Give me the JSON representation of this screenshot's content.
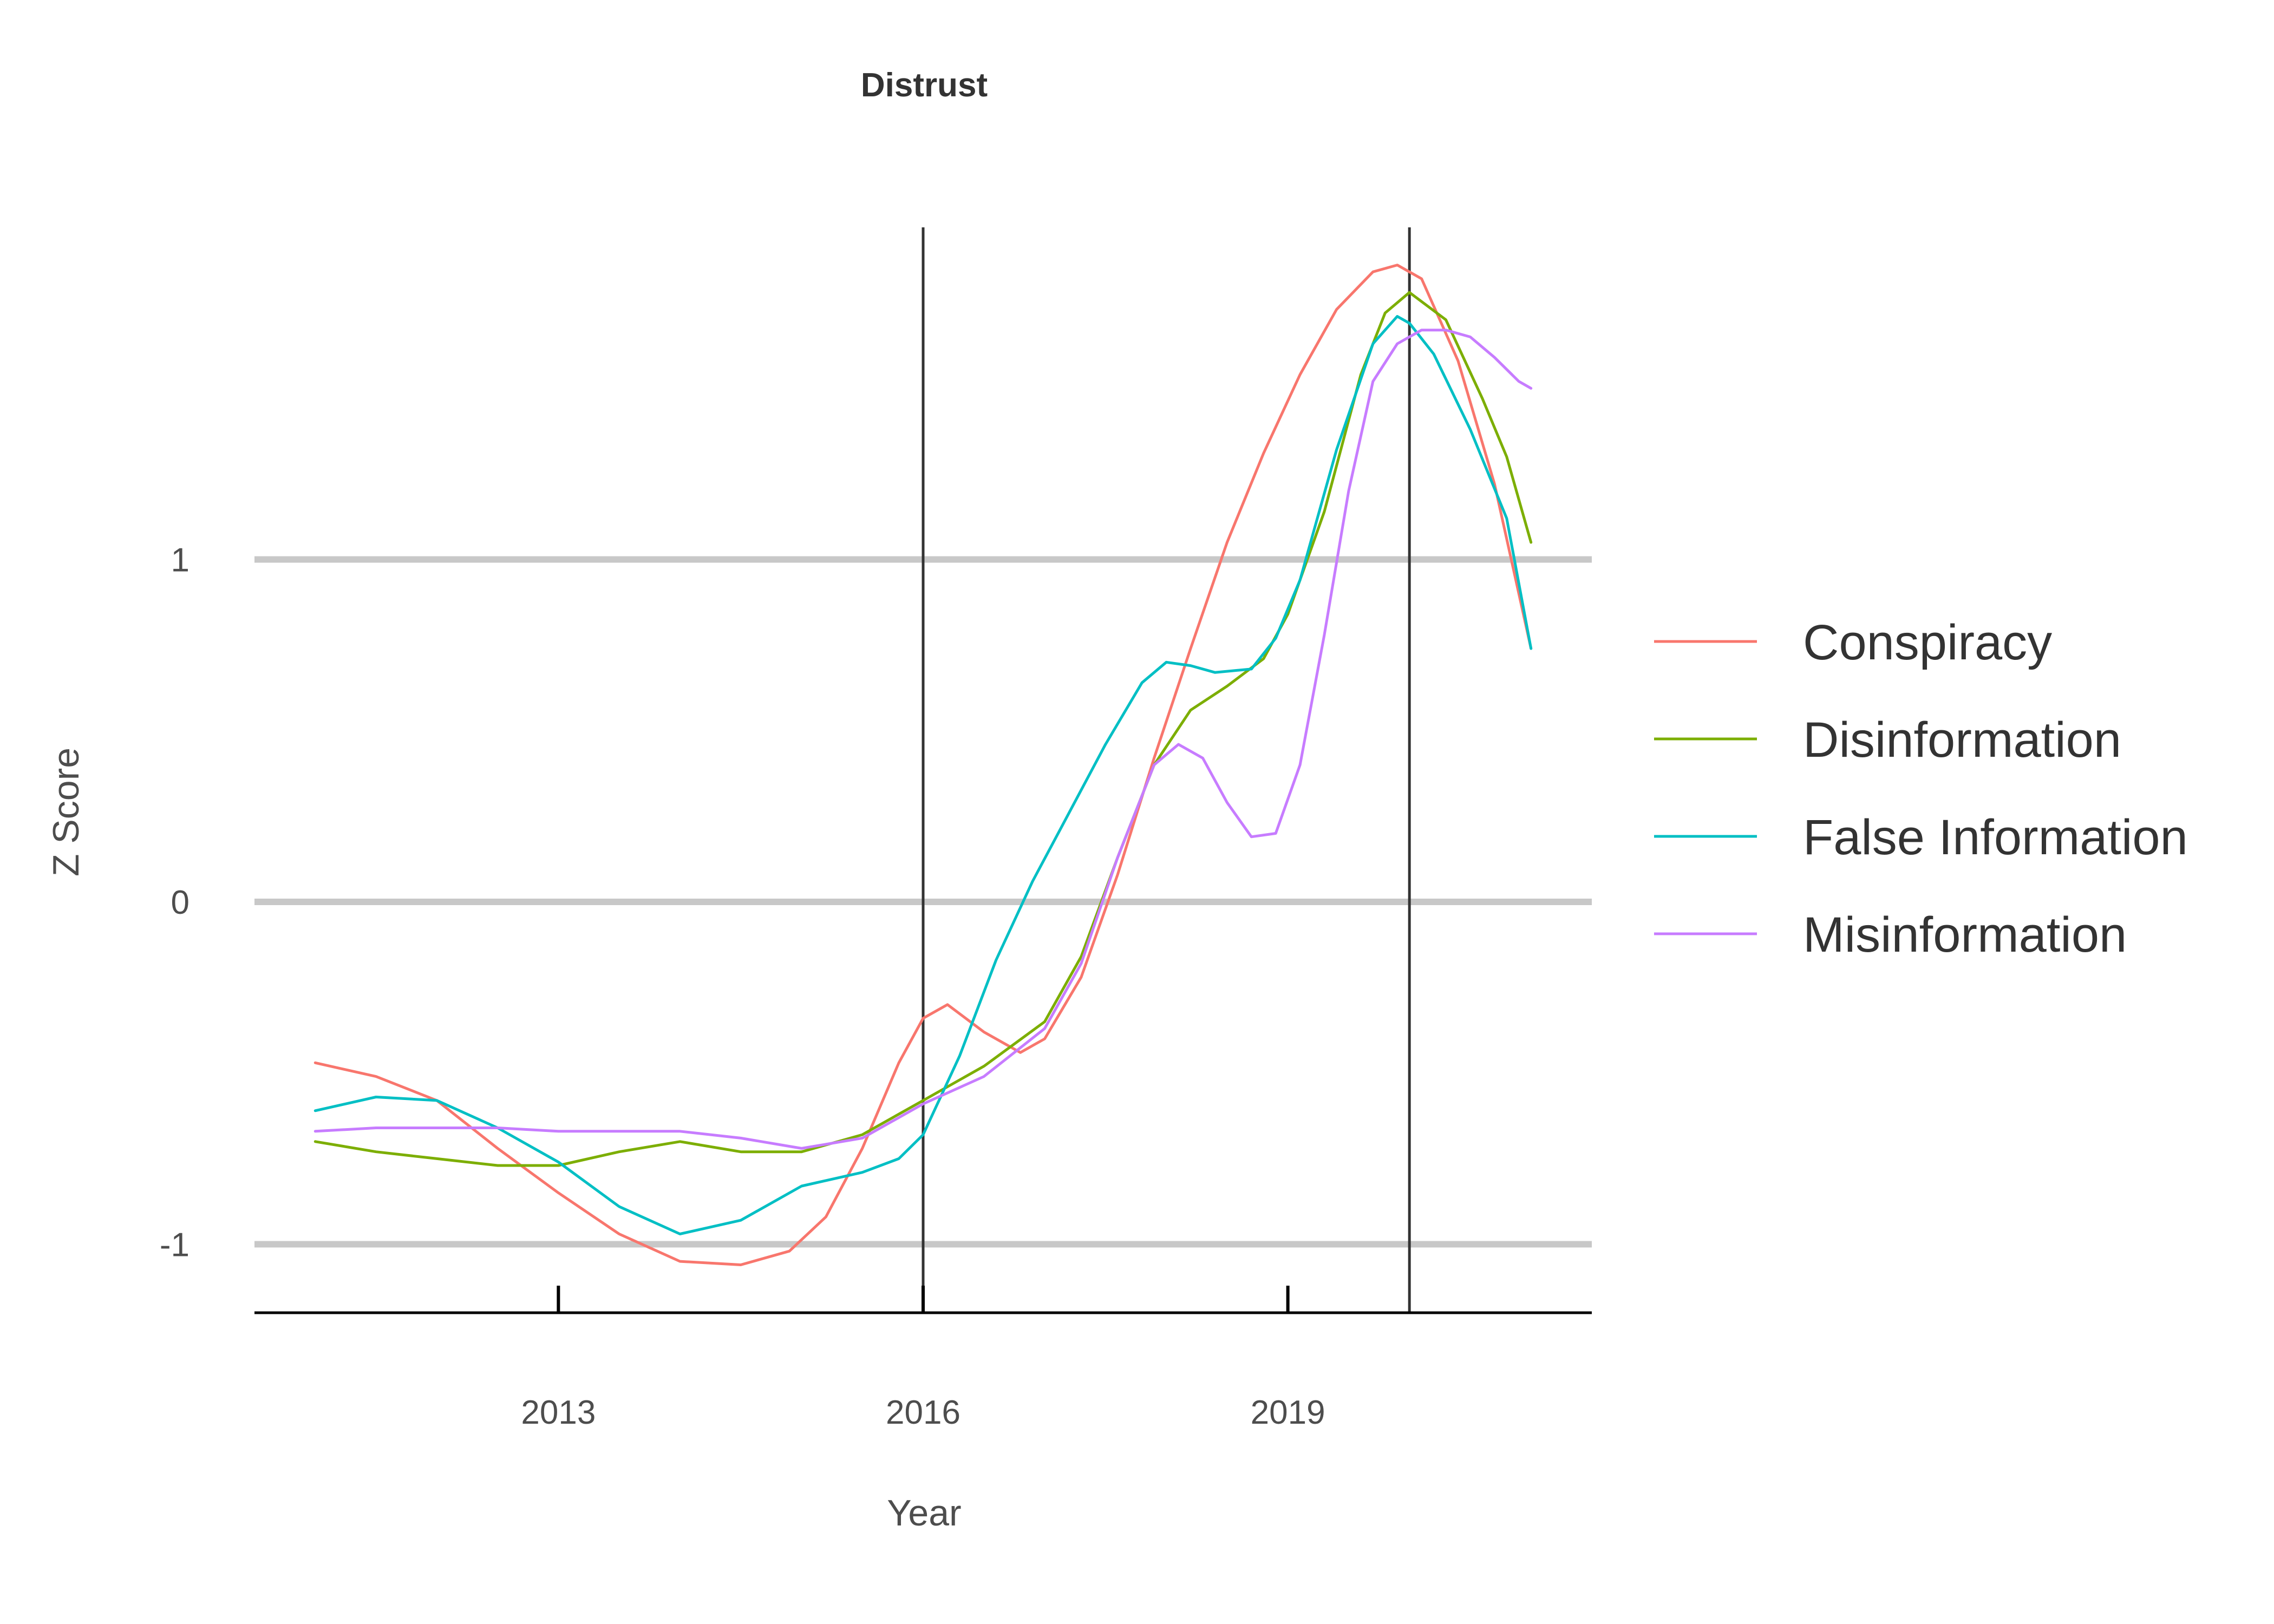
{
  "chart_data": {
    "type": "line",
    "title": "Distrust",
    "xlabel": "Year",
    "ylabel": "Z Score",
    "xlim": [
      2010.5,
      2021.5
    ],
    "ylim": [
      -1.2,
      1.97
    ],
    "x_ticks": [
      2013,
      2016,
      2019
    ],
    "y_ticks": [
      -1,
      0,
      1
    ],
    "y_tick_labels": [
      "-1",
      "0",
      "1"
    ],
    "vlines": [
      2016,
      2020
    ],
    "legend_position": "right",
    "series": [
      {
        "name": "Conspiracy",
        "color": "#F8766D",
        "x": [
          2011.0,
          2011.5,
          2012.0,
          2012.5,
          2013.0,
          2013.5,
          2014.0,
          2014.5,
          2014.9,
          2015.2,
          2015.5,
          2015.8,
          2016.0,
          2016.2,
          2016.5,
          2016.8,
          2017.0,
          2017.3,
          2017.6,
          2017.9,
          2018.2,
          2018.5,
          2018.8,
          2019.1,
          2019.4,
          2019.7,
          2019.9,
          2020.1,
          2020.4,
          2020.7,
          2021.0
        ],
        "y": [
          -0.47,
          -0.51,
          -0.58,
          -0.72,
          -0.85,
          -0.97,
          -1.05,
          -1.06,
          -1.02,
          -0.92,
          -0.72,
          -0.47,
          -0.34,
          -0.3,
          -0.38,
          -0.44,
          -0.4,
          -0.22,
          0.08,
          0.42,
          0.74,
          1.05,
          1.31,
          1.54,
          1.73,
          1.84,
          1.86,
          1.82,
          1.58,
          1.22,
          0.74
        ]
      },
      {
        "name": "Disinformation",
        "color": "#7CAE00",
        "x": [
          2011.0,
          2011.5,
          2012.0,
          2012.5,
          2013.0,
          2013.5,
          2014.0,
          2014.5,
          2015.0,
          2015.5,
          2016.0,
          2016.5,
          2017.0,
          2017.3,
          2017.6,
          2017.9,
          2018.2,
          2018.5,
          2018.8,
          2019.0,
          2019.3,
          2019.6,
          2019.8,
          2020.0,
          2020.3,
          2020.6,
          2020.8,
          2021.0
        ],
        "y": [
          -0.7,
          -0.73,
          -0.75,
          -0.77,
          -0.77,
          -0.73,
          -0.7,
          -0.73,
          -0.73,
          -0.68,
          -0.58,
          -0.48,
          -0.35,
          -0.16,
          0.13,
          0.4,
          0.56,
          0.63,
          0.71,
          0.84,
          1.14,
          1.54,
          1.72,
          1.78,
          1.7,
          1.47,
          1.3,
          1.05
        ]
      },
      {
        "name": "False Information",
        "color": "#00BFC4",
        "x": [
          2011.0,
          2011.5,
          2012.0,
          2012.5,
          2013.0,
          2013.5,
          2014.0,
          2014.5,
          2015.0,
          2015.5,
          2015.8,
          2016.0,
          2016.3,
          2016.6,
          2016.9,
          2017.2,
          2017.5,
          2017.8,
          2018.0,
          2018.2,
          2018.4,
          2018.7,
          2018.9,
          2019.1,
          2019.4,
          2019.7,
          2019.9,
          2020.0,
          2020.2,
          2020.5,
          2020.8,
          2021.0
        ],
        "y": [
          -0.61,
          -0.57,
          -0.58,
          -0.66,
          -0.76,
          -0.89,
          -0.97,
          -0.93,
          -0.83,
          -0.79,
          -0.75,
          -0.68,
          -0.45,
          -0.17,
          0.06,
          0.26,
          0.46,
          0.64,
          0.7,
          0.69,
          0.67,
          0.68,
          0.77,
          0.94,
          1.32,
          1.63,
          1.71,
          1.69,
          1.6,
          1.38,
          1.12,
          0.74
        ]
      },
      {
        "name": "Misinformation",
        "color": "#C77CFF",
        "x": [
          2011.0,
          2011.5,
          2012.0,
          2012.5,
          2013.0,
          2013.5,
          2014.0,
          2014.5,
          2015.0,
          2015.5,
          2016.0,
          2016.5,
          2017.0,
          2017.3,
          2017.6,
          2017.9,
          2018.1,
          2018.3,
          2018.5,
          2018.7,
          2018.9,
          2019.1,
          2019.3,
          2019.5,
          2019.7,
          2019.9,
          2020.1,
          2020.3,
          2020.5,
          2020.7,
          2020.9,
          2021.0
        ],
        "y": [
          -0.67,
          -0.66,
          -0.66,
          -0.66,
          -0.67,
          -0.67,
          -0.67,
          -0.69,
          -0.72,
          -0.69,
          -0.59,
          -0.51,
          -0.37,
          -0.18,
          0.13,
          0.4,
          0.46,
          0.42,
          0.29,
          0.19,
          0.2,
          0.4,
          0.78,
          1.2,
          1.52,
          1.63,
          1.67,
          1.67,
          1.65,
          1.59,
          1.52,
          1.5
        ]
      }
    ]
  }
}
